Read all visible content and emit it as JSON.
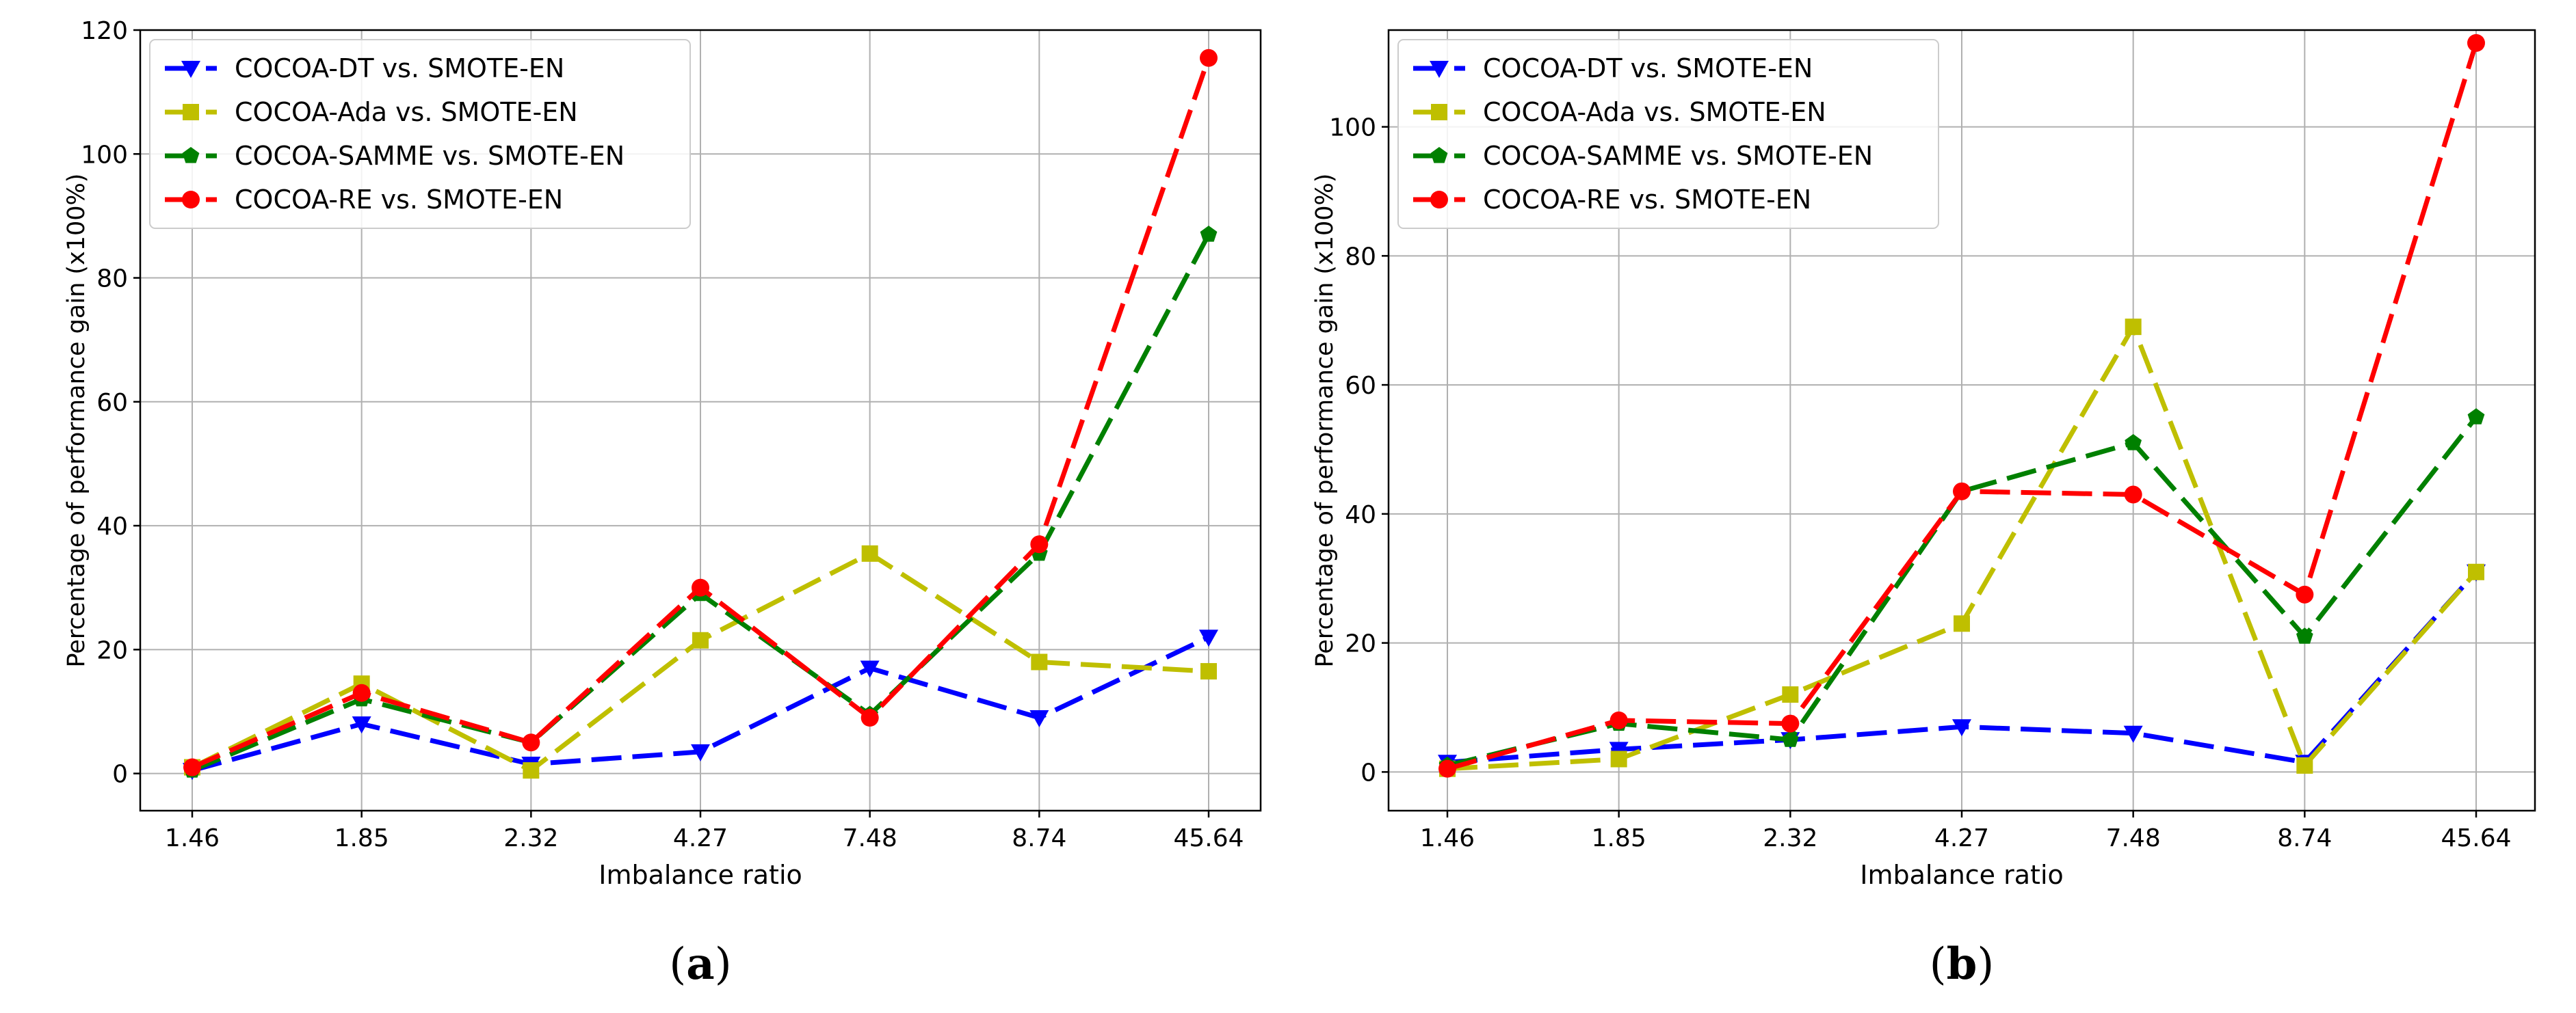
{
  "chart_data": [
    {
      "type": "line",
      "panel_label": "a",
      "xlabel": "Imbalance ratio",
      "ylabel": "Percentage of performance gain (x100%)",
      "categories": [
        "1.46",
        "1.85",
        "2.32",
        "4.27",
        "7.48",
        "8.74",
        "45.64"
      ],
      "ylim": [
        -6,
        120
      ],
      "yticks": [
        0,
        20,
        40,
        60,
        80,
        100,
        120
      ],
      "grid": true,
      "legend_position": "top-left",
      "series": [
        {
          "name": "COCOA-DT vs. SMOTE-EN",
          "color": "#0000ff",
          "marker": "triangle-down",
          "values": [
            0.5,
            8,
            1.5,
            3.5,
            17,
            9,
            22
          ]
        },
        {
          "name": "COCOA-Ada vs. SMOTE-EN",
          "color": "#bfbf00",
          "marker": "square",
          "values": [
            1,
            14.5,
            0.5,
            21.5,
            35.5,
            18,
            16.5
          ]
        },
        {
          "name": "COCOA-SAMME vs. SMOTE-EN",
          "color": "#008000",
          "marker": "pentagon",
          "values": [
            0.5,
            12,
            5,
            29,
            9.5,
            35.5,
            87
          ]
        },
        {
          "name": "COCOA-RE vs. SMOTE-EN",
          "color": "#ff0000",
          "marker": "circle",
          "values": [
            1,
            13,
            5,
            30,
            9,
            37,
            115.5
          ]
        }
      ]
    },
    {
      "type": "line",
      "panel_label": "b",
      "xlabel": "Imbalance ratio",
      "ylabel": "Percentage of performance gain (x100%)",
      "categories": [
        "1.46",
        "1.85",
        "2.32",
        "4.27",
        "7.48",
        "8.74",
        "45.64"
      ],
      "ylim": [
        -6,
        115
      ],
      "yticks": [
        0,
        20,
        40,
        60,
        80,
        100
      ],
      "grid": true,
      "legend_position": "top-left",
      "series": [
        {
          "name": "COCOA-DT vs. SMOTE-EN",
          "color": "#0000ff",
          "marker": "triangle-down",
          "values": [
            1.5,
            3.5,
            5,
            7,
            6,
            1.5,
            31
          ]
        },
        {
          "name": "COCOA-Ada vs. SMOTE-EN",
          "color": "#bfbf00",
          "marker": "square",
          "values": [
            0.5,
            2,
            12,
            23,
            69,
            1,
            31
          ]
        },
        {
          "name": "COCOA-SAMME vs. SMOTE-EN",
          "color": "#008000",
          "marker": "pentagon",
          "values": [
            1,
            7.5,
            5,
            43.5,
            51,
            21,
            55
          ]
        },
        {
          "name": "COCOA-RE vs. SMOTE-EN",
          "color": "#ff0000",
          "marker": "circle",
          "values": [
            0.5,
            8,
            7.5,
            43.5,
            43,
            27.5,
            113
          ]
        }
      ]
    }
  ]
}
